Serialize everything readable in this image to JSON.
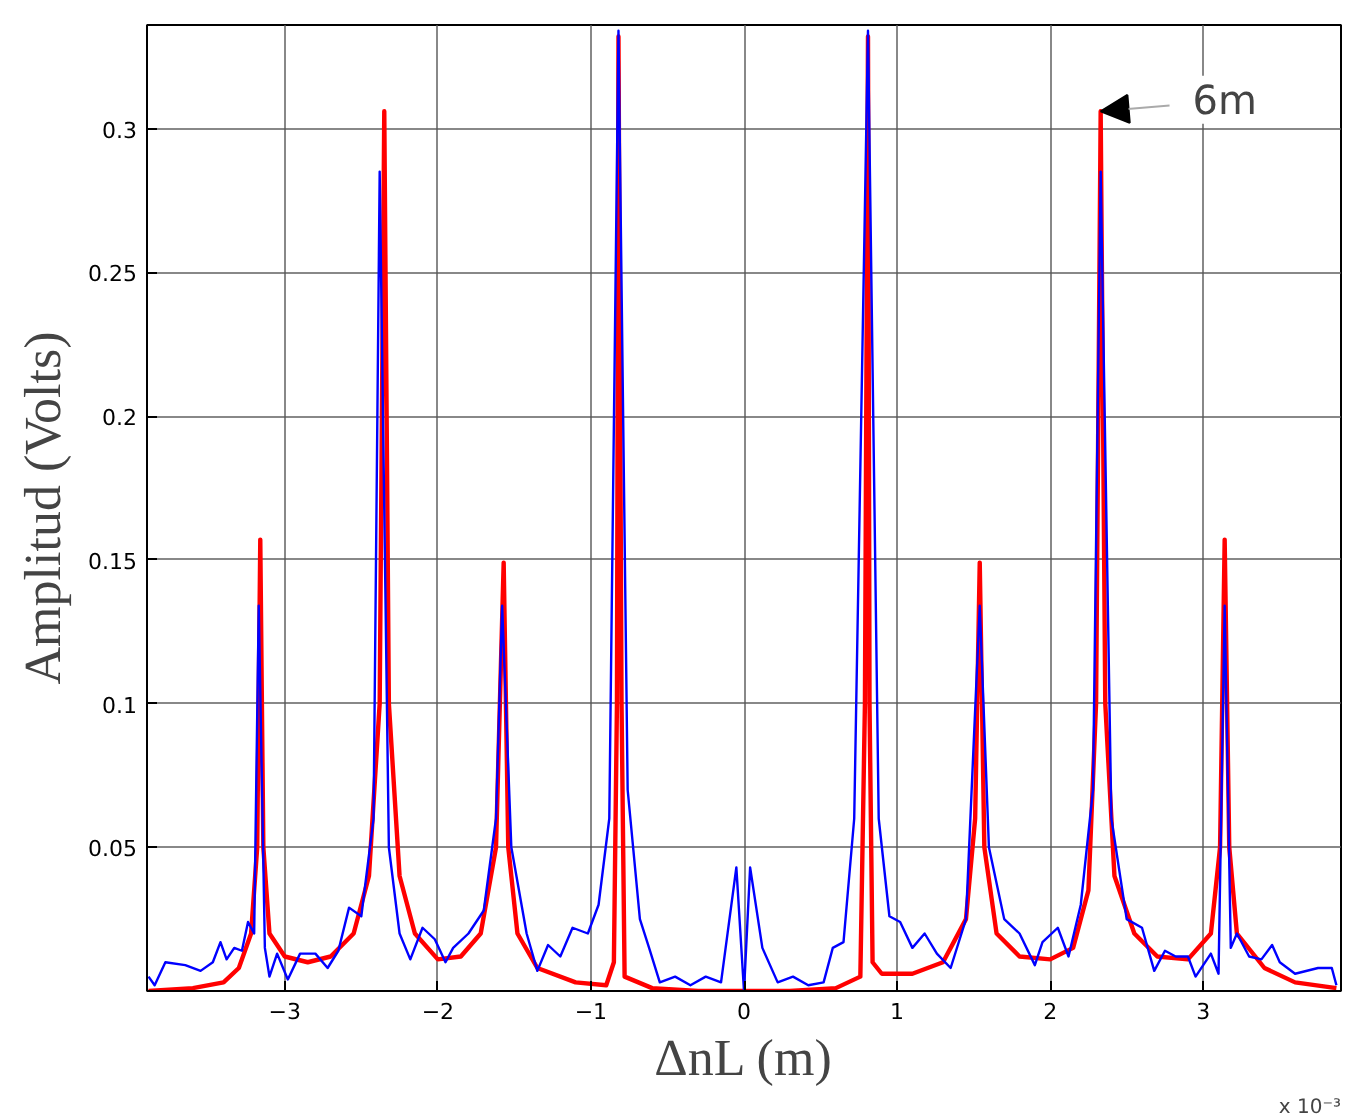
{
  "chart_data": {
    "type": "line",
    "xlabel": "ΔnL (m)",
    "ylabel": "Amplitud (Volts)",
    "xlim": [
      -3.9,
      3.9
    ],
    "ylim": [
      0,
      0.336
    ],
    "xticks": [
      -3,
      -2,
      -1,
      0,
      1,
      2,
      3
    ],
    "yticks": [
      0.05,
      0.1,
      0.15,
      0.2,
      0.25,
      0.3
    ],
    "grid": true,
    "marker": "none",
    "line_style": "solid",
    "annotations": [
      {
        "text": "6m",
        "x": 2.33,
        "y": 0.306
      },
      "x 10⁻³"
    ],
    "series": [
      {
        "color": "#ff0000",
        "x": [
          -3.89,
          -3.6,
          -3.4,
          -3.3,
          -3.22,
          -3.18,
          -3.16,
          -3.14,
          -3.1,
          -3.0,
          -2.85,
          -2.7,
          -2.55,
          -2.45,
          -2.38,
          -2.35,
          -2.32,
          -2.25,
          -2.15,
          -2.0,
          -1.85,
          -1.72,
          -1.62,
          -1.57,
          -1.54,
          -1.48,
          -1.35,
          -1.1,
          -0.9,
          -0.85,
          -0.83,
          -0.82,
          -0.8,
          -0.78,
          -0.6,
          -0.3,
          0,
          0.3,
          0.6,
          0.76,
          0.79,
          0.81,
          0.82,
          0.84,
          0.9,
          1.1,
          1.3,
          1.45,
          1.51,
          1.54,
          1.57,
          1.65,
          1.8,
          2.0,
          2.15,
          2.25,
          2.3,
          2.33,
          2.36,
          2.42,
          2.55,
          2.7,
          2.9,
          3.05,
          3.11,
          3.14,
          3.17,
          3.22,
          3.4,
          3.6,
          3.87
        ],
        "values": [
          0.0,
          0.001,
          0.003,
          0.008,
          0.02,
          0.05,
          0.157,
          0.05,
          0.02,
          0.012,
          0.01,
          0.012,
          0.02,
          0.04,
          0.1,
          0.306,
          0.1,
          0.04,
          0.02,
          0.011,
          0.012,
          0.02,
          0.05,
          0.149,
          0.05,
          0.02,
          0.008,
          0.003,
          0.002,
          0.01,
          0.1,
          0.332,
          0.1,
          0.005,
          0.001,
          0,
          0,
          0,
          0.001,
          0.005,
          0.1,
          0.332,
          0.1,
          0.01,
          0.006,
          0.006,
          0.01,
          0.025,
          0.06,
          0.149,
          0.05,
          0.02,
          0.012,
          0.011,
          0.015,
          0.035,
          0.1,
          0.306,
          0.1,
          0.04,
          0.02,
          0.012,
          0.011,
          0.02,
          0.05,
          0.157,
          0.05,
          0.02,
          0.008,
          0.003,
          0.001
        ]
      },
      {
        "color": "#0000ff",
        "x": [
          -3.89,
          -3.85,
          -3.78,
          -3.65,
          -3.55,
          -3.47,
          -3.42,
          -3.38,
          -3.33,
          -3.28,
          -3.24,
          -3.2,
          -3.17,
          -3.13,
          -3.1,
          -3.05,
          -2.98,
          -2.9,
          -2.8,
          -2.72,
          -2.65,
          -2.58,
          -2.5,
          -2.42,
          -2.38,
          -2.32,
          -2.25,
          -2.18,
          -2.1,
          -2.02,
          -1.95,
          -1.9,
          -1.8,
          -1.7,
          -1.62,
          -1.58,
          -1.52,
          -1.42,
          -1.35,
          -1.28,
          -1.2,
          -1.12,
          -1.02,
          -0.95,
          -0.88,
          -0.82,
          -0.76,
          -0.68,
          -0.62,
          -0.55,
          -0.45,
          -0.35,
          -0.25,
          -0.15,
          -0.05,
          0,
          0.04,
          0.12,
          0.22,
          0.32,
          0.42,
          0.52,
          0.58,
          0.65,
          0.72,
          0.81,
          0.88,
          0.95,
          1.02,
          1.1,
          1.18,
          1.26,
          1.35,
          1.45,
          1.54,
          1.6,
          1.7,
          1.8,
          1.9,
          1.95,
          2.05,
          2.12,
          2.2,
          2.28,
          2.33,
          2.4,
          2.5,
          2.6,
          2.68,
          2.75,
          2.82,
          2.9,
          2.95,
          3.05,
          3.1,
          3.14,
          3.18,
          3.22,
          3.3,
          3.38,
          3.45,
          3.5,
          3.6,
          3.75,
          3.84,
          3.87
        ],
        "values": [
          0.005,
          0.002,
          0.01,
          0.009,
          0.007,
          0.01,
          0.017,
          0.011,
          0.015,
          0.014,
          0.024,
          0.02,
          0.134,
          0.015,
          0.005,
          0.013,
          0.004,
          0.013,
          0.013,
          0.008,
          0.014,
          0.029,
          0.026,
          0.06,
          0.285,
          0.05,
          0.02,
          0.011,
          0.022,
          0.018,
          0.01,
          0.015,
          0.02,
          0.028,
          0.06,
          0.134,
          0.05,
          0.02,
          0.007,
          0.016,
          0.012,
          0.022,
          0.02,
          0.03,
          0.06,
          0.334,
          0.07,
          0.025,
          0.015,
          0.003,
          0.005,
          0.002,
          0.005,
          0.003,
          0.043,
          0.0,
          0.043,
          0.015,
          0.003,
          0.005,
          0.002,
          0.003,
          0.015,
          0.017,
          0.06,
          0.334,
          0.06,
          0.026,
          0.024,
          0.015,
          0.02,
          0.013,
          0.008,
          0.025,
          0.134,
          0.05,
          0.025,
          0.02,
          0.009,
          0.017,
          0.022,
          0.012,
          0.03,
          0.07,
          0.285,
          0.06,
          0.025,
          0.022,
          0.007,
          0.014,
          0.012,
          0.012,
          0.005,
          0.013,
          0.006,
          0.134,
          0.015,
          0.02,
          0.012,
          0.011,
          0.016,
          0.01,
          0.006,
          0.008,
          0.008,
          0.002
        ]
      }
    ]
  }
}
